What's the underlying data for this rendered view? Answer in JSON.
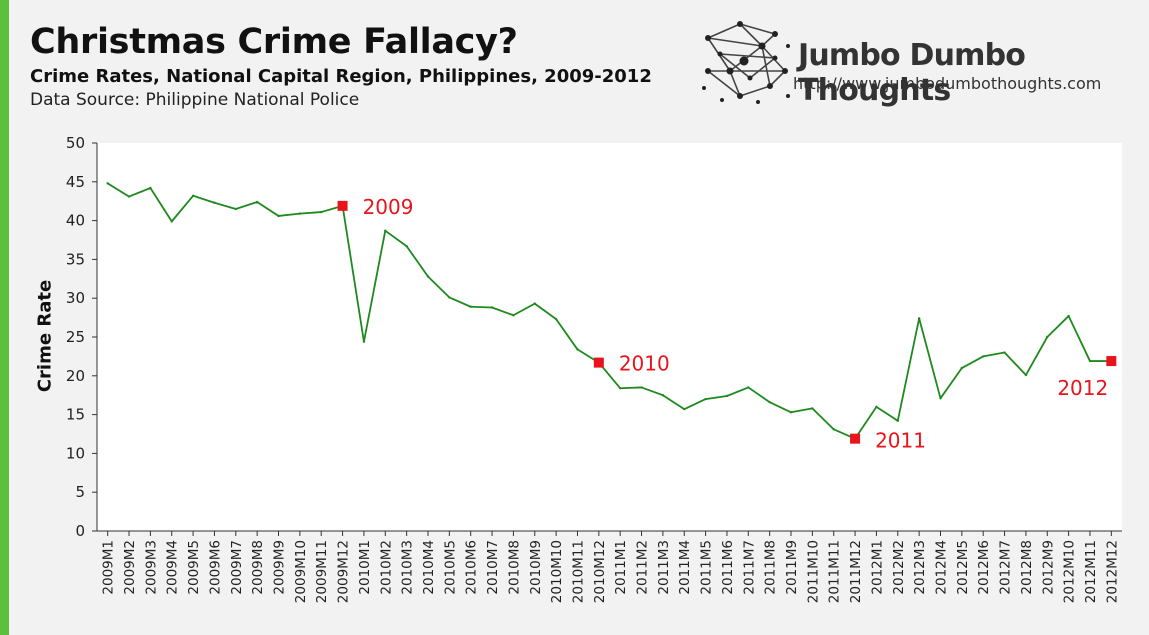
{
  "header": {
    "title": "Christmas Crime Fallacy?",
    "subtitle": "Crime Rates, National Capital Region, Philippines, 2009-2012",
    "source": "Data Source: Philippine National Police"
  },
  "brand": {
    "name": "Jumbo Dumbo Thoughts",
    "url": "http://www.jumbodumbothoughts.com"
  },
  "colors": {
    "line": "#1e8a1e",
    "marker": "#e8141b",
    "accent_bar": "#5cbf3e"
  },
  "chart_data": {
    "type": "line",
    "ylabel": "Crime Rate",
    "ylim": [
      0,
      50
    ],
    "yticks": [
      0,
      5,
      10,
      15,
      20,
      25,
      30,
      35,
      40,
      45,
      50
    ],
    "x": [
      "2009M1",
      "2009M2",
      "2009M3",
      "2009M4",
      "2009M5",
      "2009M6",
      "2009M7",
      "2009M8",
      "2009M9",
      "2009M10",
      "2009M11",
      "2009M12",
      "2010M1",
      "2010M2",
      "2010M3",
      "2010M4",
      "2010M5",
      "2010M6",
      "2010M7",
      "2010M8",
      "2010M9",
      "2010M10",
      "2010M11",
      "2010M12",
      "2011M1",
      "2011M2",
      "2011M3",
      "2011M4",
      "2011M5",
      "2011M6",
      "2011M7",
      "2011M8",
      "2011M9",
      "2011M10",
      "2011M11",
      "2011M12",
      "2012M1",
      "2012M2",
      "2012M3",
      "2012M4",
      "2012M5",
      "2012M6",
      "2012M7",
      "2012M8",
      "2012M9",
      "2012M10",
      "2012M11",
      "2012M12"
    ],
    "values": [
      44.8,
      43.1,
      44.2,
      39.9,
      43.2,
      42.3,
      41.5,
      42.4,
      40.6,
      40.9,
      41.1,
      41.9,
      24.4,
      38.7,
      36.7,
      32.8,
      30.1,
      28.9,
      28.8,
      27.8,
      29.3,
      27.3,
      23.4,
      21.7,
      18.4,
      18.5,
      17.5,
      15.7,
      17.0,
      17.4,
      18.5,
      16.6,
      15.3,
      15.8,
      13.1,
      11.9,
      16.0,
      14.2,
      27.4,
      17.1,
      21.0,
      22.5,
      23.0,
      20.1,
      25.0,
      27.7,
      21.9,
      21.9
    ],
    "annotations": [
      {
        "index": 11,
        "label": "2009"
      },
      {
        "index": 23,
        "label": "2010"
      },
      {
        "index": 35,
        "label": "2011"
      },
      {
        "index": 47,
        "label": "2012"
      }
    ]
  }
}
